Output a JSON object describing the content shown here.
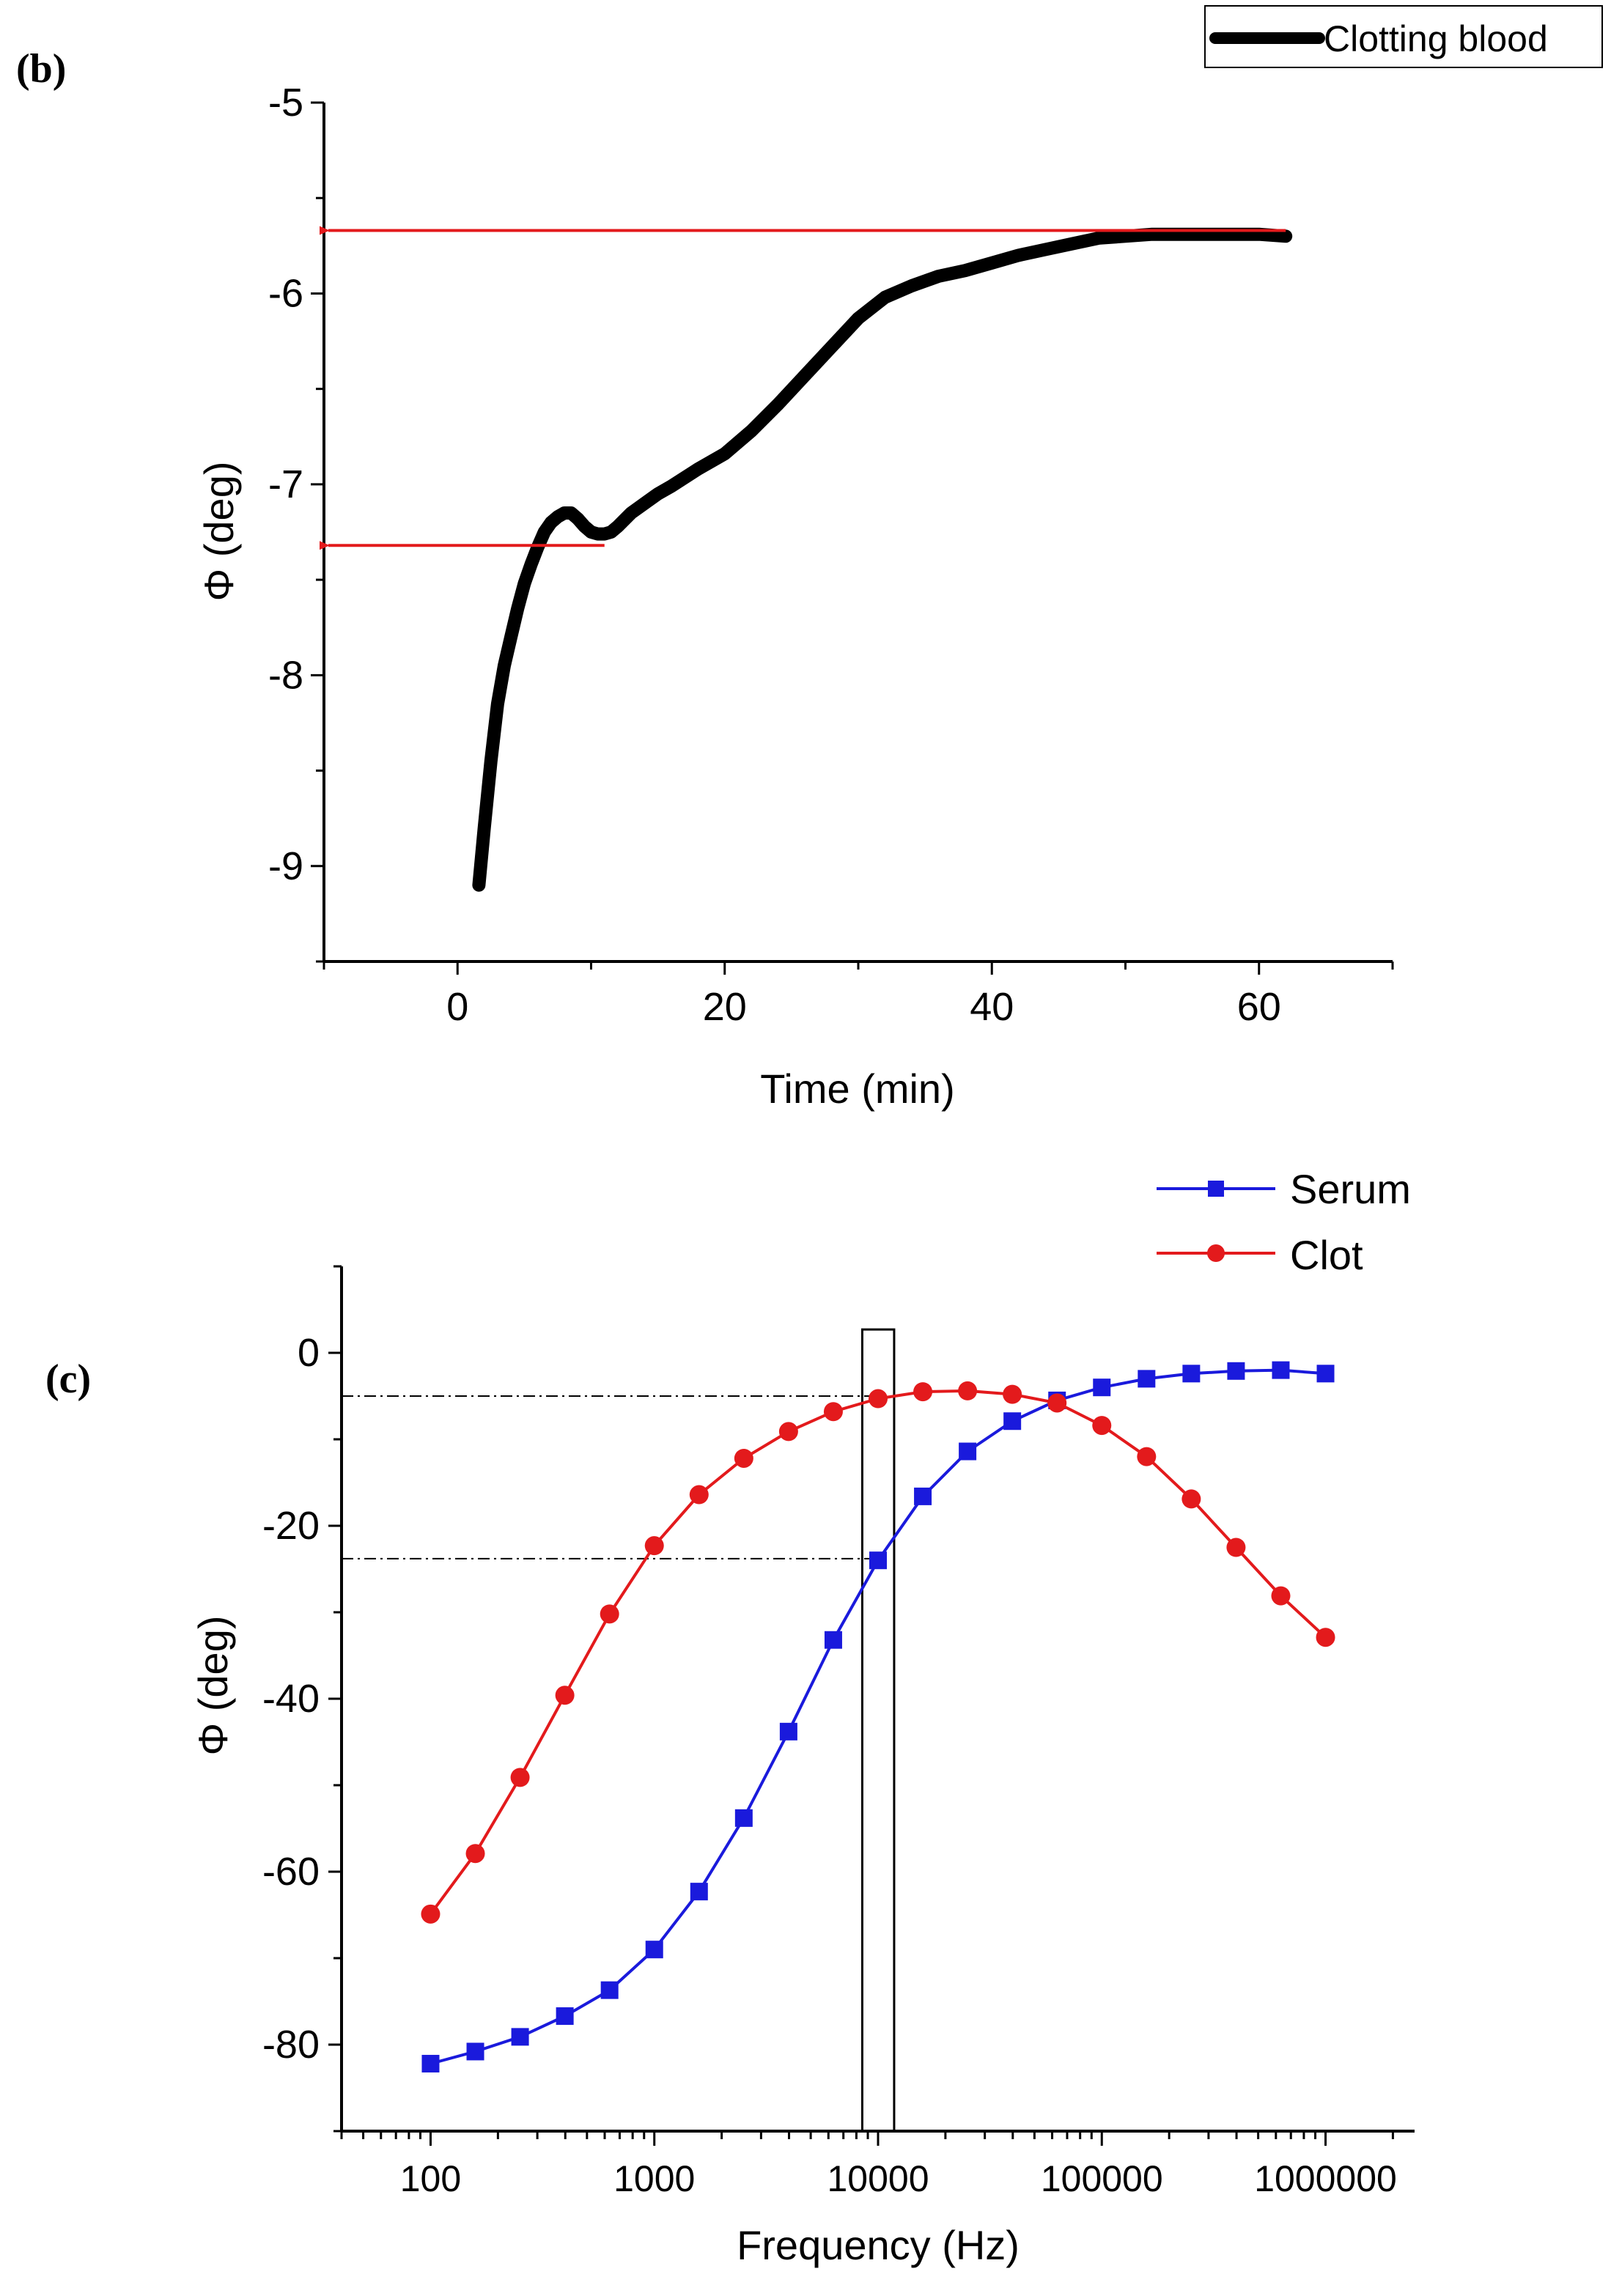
{
  "panels": {
    "b_label": "(b)",
    "c_label": "(c)"
  },
  "chart_data": [
    {
      "type": "line",
      "panel": "(b)",
      "title": "",
      "xlabel": "Time (min)",
      "ylabel": "Φ (deg)",
      "xlim": [
        -10,
        70
      ],
      "ylim": [
        -9.5,
        -5
      ],
      "xticks": [
        0,
        20,
        40,
        60
      ],
      "xtick_labels": [
        "0",
        "20",
        "40",
        "60"
      ],
      "yticks": [
        -5,
        -6,
        -7,
        -8,
        -9
      ],
      "ytick_labels": [
        "-5",
        "-6",
        "-7",
        "-8",
        "-9"
      ],
      "grid": false,
      "legend": {
        "position": "top-right",
        "entries": [
          "Clotting blood"
        ]
      },
      "series": [
        {
          "name": "Clotting blood",
          "color": "#000000",
          "x": [
            1.6,
            2.0,
            2.5,
            3.0,
            3.5,
            4.0,
            4.5,
            5.0,
            5.5,
            6.0,
            6.5,
            7.0,
            7.5,
            8.0,
            8.5,
            9.0,
            9.5,
            10.0,
            10.5,
            11.0,
            11.5,
            12.0,
            13.0,
            14.0,
            15.0,
            16.0,
            18.0,
            20.0,
            22.0,
            24.0,
            26.0,
            28.0,
            30.0,
            32.0,
            34.0,
            36.0,
            38.0,
            40.0,
            42.0,
            44.0,
            46.0,
            48.0,
            50.0,
            52.0,
            54.0,
            56.0,
            58.0,
            60.0,
            62.0
          ],
          "y": [
            -9.1,
            -8.8,
            -8.45,
            -8.15,
            -7.95,
            -7.8,
            -7.65,
            -7.52,
            -7.42,
            -7.33,
            -7.25,
            -7.2,
            -7.17,
            -7.15,
            -7.15,
            -7.18,
            -7.22,
            -7.25,
            -7.26,
            -7.26,
            -7.25,
            -7.22,
            -7.15,
            -7.1,
            -7.05,
            -7.01,
            -6.92,
            -6.84,
            -6.72,
            -6.58,
            -6.43,
            -6.28,
            -6.13,
            -6.02,
            -5.96,
            -5.91,
            -5.88,
            -5.84,
            -5.8,
            -5.77,
            -5.74,
            -5.71,
            -5.7,
            -5.69,
            -5.69,
            -5.69,
            -5.69,
            -5.69,
            -5.7
          ]
        }
      ],
      "annotations": [
        {
          "type": "arrow",
          "color": "#e31a1c",
          "from": [
            62,
            -5.67
          ],
          "to": [
            -10,
            -5.67
          ]
        },
        {
          "type": "arrow",
          "color": "#e31a1c",
          "from": [
            11,
            -7.32
          ],
          "to": [
            -10,
            -7.32
          ]
        }
      ]
    },
    {
      "type": "line",
      "panel": "(c)",
      "title": "",
      "xlabel": "Frequency (Hz)",
      "ylabel": "Φ (deg)",
      "xscale": "log",
      "xlim": [
        40,
        2500000
      ],
      "ylim": [
        -90,
        10
      ],
      "xticks": [
        100,
        1000,
        10000,
        100000,
        1000000
      ],
      "xtick_labels": [
        "100",
        "1000",
        "10000",
        "100000",
        "1000000"
      ],
      "yticks": [
        0,
        -20,
        -40,
        -60,
        -80
      ],
      "ytick_labels": [
        "0",
        "-20",
        "-40",
        "-60",
        "-80"
      ],
      "grid": false,
      "legend": {
        "position": "top-right",
        "entries": [
          "Serum",
          "Clot"
        ]
      },
      "x": [
        100,
        158.5,
        251.2,
        398.1,
        631,
        1000,
        1585,
        2512,
        3981,
        6310,
        10000,
        15850,
        25120,
        39810,
        63100,
        100000,
        158500,
        251200,
        398100,
        631000,
        1000000
      ],
      "series": [
        {
          "name": "Serum",
          "color": "#1a1adc",
          "marker": "square",
          "values": [
            -82.2,
            -80.8,
            -79.1,
            -76.7,
            -73.7,
            -69.0,
            -62.3,
            -53.8,
            -43.8,
            -33.2,
            -24.0,
            -16.6,
            -11.4,
            -7.9,
            -5.5,
            -4.0,
            -3.0,
            -2.4,
            -2.1,
            -2.0,
            -2.4
          ]
        },
        {
          "name": "Clot",
          "color": "#e31a1c",
          "marker": "circle",
          "values": [
            -64.9,
            -57.9,
            -49.1,
            -39.6,
            -30.2,
            -22.3,
            -16.4,
            -12.2,
            -9.1,
            -6.8,
            -5.3,
            -4.5,
            -4.4,
            -4.8,
            -5.8,
            -8.4,
            -12.0,
            -16.9,
            -22.5,
            -28.1,
            -32.9
          ]
        }
      ],
      "annotations": [
        {
          "type": "dashdot-line",
          "color": "#000000",
          "from": [
            40,
            -5.0
          ],
          "to": [
            10000,
            -5.0
          ]
        },
        {
          "type": "dashdot-line",
          "color": "#000000",
          "from": [
            40,
            -23.8
          ],
          "to": [
            10000,
            -23.8
          ]
        },
        {
          "type": "rectangle",
          "color": "#000000",
          "x_range": [
            8500,
            11800
          ],
          "y_range": [
            -90,
            2.7
          ]
        }
      ]
    }
  ]
}
